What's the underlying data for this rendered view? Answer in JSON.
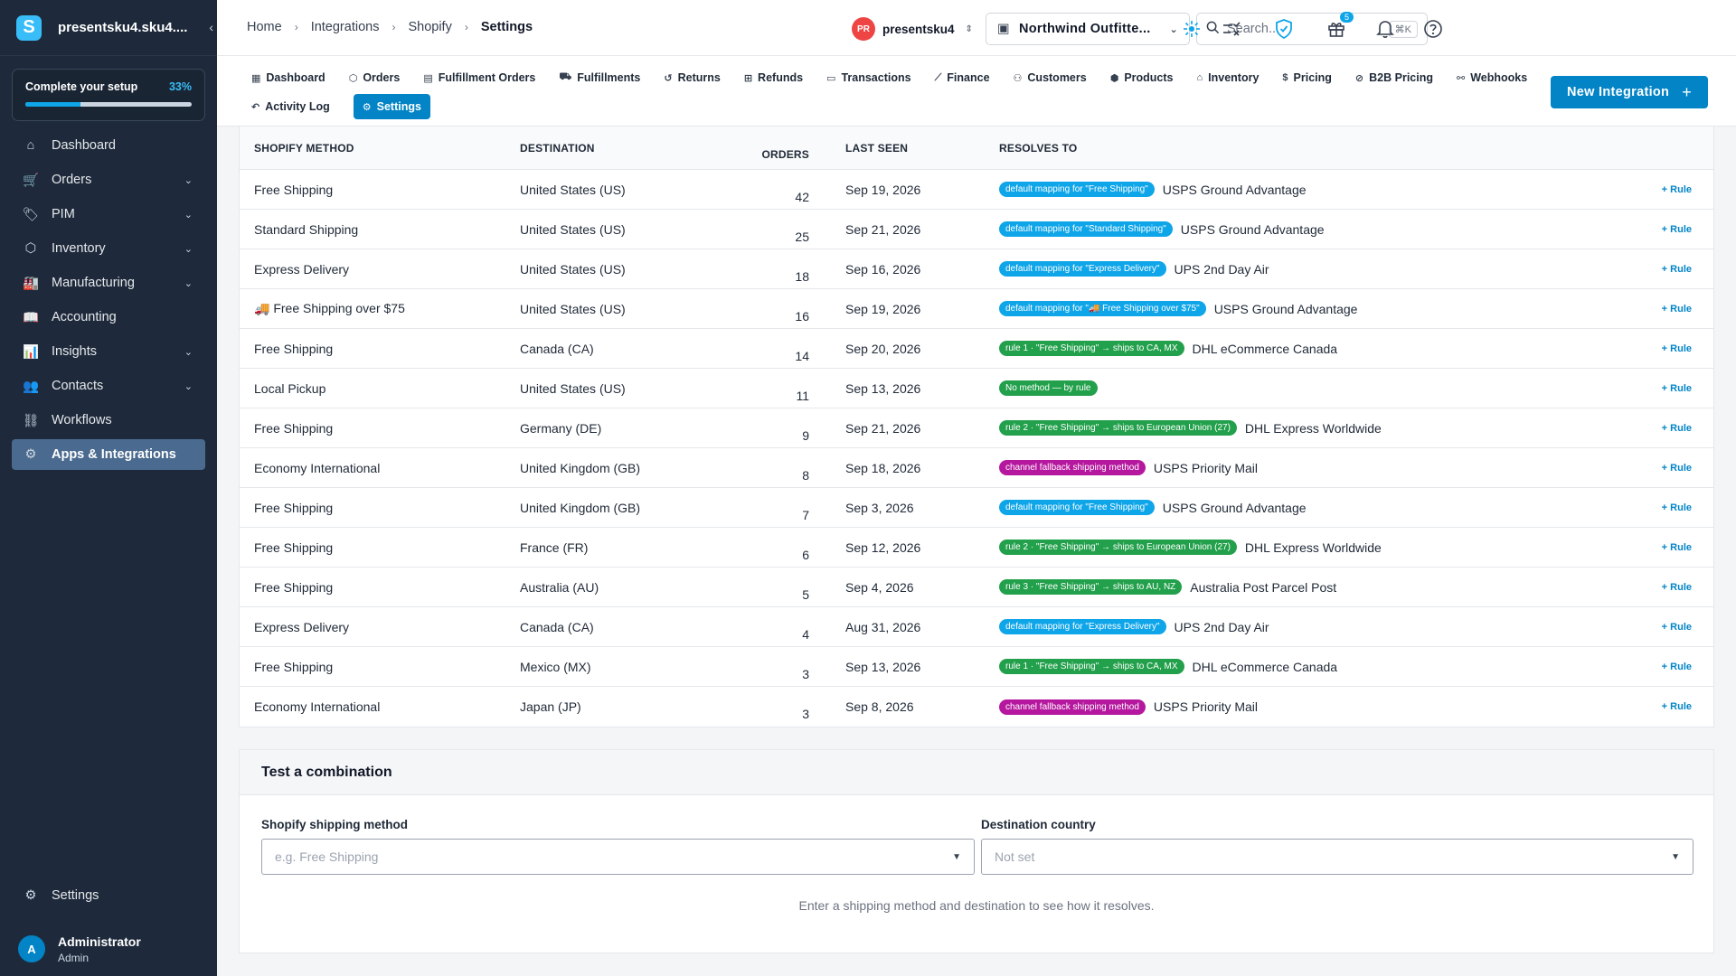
{
  "sidebar": {
    "brand_letter": "S",
    "brand_name": "presentsku4.sku4....",
    "collapse_glyph": "‹",
    "setup": {
      "label": "Complete your setup",
      "percent_label": "33%",
      "progress": 0.33
    },
    "items": [
      {
        "label": "Dashboard",
        "icon": "home-icon",
        "glyph": "⌂",
        "chevron": false,
        "active": false
      },
      {
        "label": "Orders",
        "icon": "cart-icon",
        "glyph": "🛒",
        "chevron": true,
        "active": false
      },
      {
        "label": "PIM",
        "icon": "tag-icon",
        "glyph": "🏷",
        "chevron": true,
        "active": false
      },
      {
        "label": "Inventory",
        "icon": "box-icon",
        "glyph": "⬡",
        "chevron": true,
        "active": false
      },
      {
        "label": "Manufacturing",
        "icon": "factory-icon",
        "glyph": "🏭",
        "chevron": true,
        "active": false
      },
      {
        "label": "Accounting",
        "icon": "book-icon",
        "glyph": "📖",
        "chevron": false,
        "active": false
      },
      {
        "label": "Insights",
        "icon": "chart-icon",
        "glyph": "📊",
        "chevron": true,
        "active": false
      },
      {
        "label": "Contacts",
        "icon": "people-icon",
        "glyph": "👥",
        "chevron": true,
        "active": false
      },
      {
        "label": "Workflows",
        "icon": "workflow-icon",
        "glyph": "⛓",
        "chevron": false,
        "active": false
      },
      {
        "label": "Apps & Integrations",
        "icon": "gear-icon",
        "glyph": "⚙",
        "chevron": false,
        "active": true
      }
    ],
    "settings_label": "Settings",
    "user": {
      "initial": "A",
      "name": "Administrator",
      "role": "Admin"
    }
  },
  "header": {
    "breadcrumbs": [
      "Home",
      "Integrations",
      "Shopify",
      "Settings"
    ],
    "user_initials": "PR",
    "user_name": "presentsku4",
    "store_name": "Northwind Outfitte...",
    "search_placeholder": "Search...",
    "search_shortcut": "⌘K",
    "gift_badge": "5"
  },
  "tabs": {
    "row1": [
      {
        "label": "Dashboard",
        "icon": "grid-icon",
        "glyph": "▦"
      },
      {
        "label": "Orders",
        "icon": "box-icon",
        "glyph": "⬡"
      },
      {
        "label": "Fulfillment Orders",
        "icon": "clipboard-icon",
        "glyph": "▤"
      },
      {
        "label": "Fulfillments",
        "icon": "truck-icon",
        "glyph": "⛟"
      },
      {
        "label": "Returns",
        "icon": "return-icon",
        "glyph": "↺"
      },
      {
        "label": "Refunds",
        "icon": "refund-icon",
        "glyph": "⊞"
      },
      {
        "label": "Transactions",
        "icon": "card-icon",
        "glyph": "▭"
      },
      {
        "label": "Finance",
        "icon": "finance-icon",
        "glyph": "⟋"
      },
      {
        "label": "Customers",
        "icon": "people-icon",
        "glyph": "⚇"
      },
      {
        "label": "Products",
        "icon": "product-icon",
        "glyph": "⬢"
      },
      {
        "label": "Inventory",
        "icon": "warehouse-icon",
        "glyph": "⌂"
      },
      {
        "label": "Pricing",
        "icon": "dollar-icon",
        "glyph": "$"
      },
      {
        "label": "B2B Pricing",
        "icon": "tag-icon",
        "glyph": "⊘"
      },
      {
        "label": "Webhooks",
        "icon": "webhook-icon",
        "glyph": "⚯"
      }
    ],
    "row2": [
      {
        "label": "Activity Log",
        "icon": "history-icon",
        "glyph": "↶",
        "active": false
      },
      {
        "label": "Settings",
        "icon": "gear-icon",
        "glyph": "⚙",
        "active": true
      }
    ],
    "new_integration_label": "New Integration"
  },
  "table": {
    "headers": [
      "SHOPIFY METHOD",
      "DESTINATION",
      "ORDERS",
      "LAST SEEN",
      "RESOLVES TO"
    ],
    "rule_label": "Rule",
    "rows": [
      {
        "method": "Free Shipping",
        "destination": "United States (US)",
        "orders": "42",
        "last_seen": "Sep 19, 2026",
        "pill": "default mapping for \"Free Shipping\"",
        "pill_color": "blue",
        "resolves": "USPS Ground Advantage"
      },
      {
        "method": "Standard Shipping",
        "destination": "United States (US)",
        "orders": "25",
        "last_seen": "Sep 21, 2026",
        "pill": "default mapping for \"Standard Shipping\"",
        "pill_color": "blue",
        "resolves": "USPS Ground Advantage"
      },
      {
        "method": "Express Delivery",
        "destination": "United States (US)",
        "orders": "18",
        "last_seen": "Sep 16, 2026",
        "pill": "default mapping for \"Express Delivery\"",
        "pill_color": "blue",
        "resolves": "UPS 2nd Day Air"
      },
      {
        "method": "🚚 Free Shipping over $75",
        "destination": "United States (US)",
        "orders": "16",
        "last_seen": "Sep 19, 2026",
        "pill": "default mapping for \"🚚 Free Shipping over $75\"",
        "pill_color": "blue",
        "resolves": "USPS Ground Advantage"
      },
      {
        "method": "Free Shipping",
        "destination": "Canada (CA)",
        "orders": "14",
        "last_seen": "Sep 20, 2026",
        "pill": "rule 1 · \"Free Shipping\" → ships to CA, MX",
        "pill_color": "green",
        "resolves": "DHL eCommerce Canada"
      },
      {
        "method": "Local Pickup",
        "destination": "United States (US)",
        "orders": "11",
        "last_seen": "Sep 13, 2026",
        "pill": "No method — by rule",
        "pill_color": "green",
        "resolves": ""
      },
      {
        "method": "Free Shipping",
        "destination": "Germany (DE)",
        "orders": "9",
        "last_seen": "Sep 21, 2026",
        "pill": "rule 2 · \"Free Shipping\" → ships to European Union (27)",
        "pill_color": "green",
        "resolves": "DHL Express Worldwide"
      },
      {
        "method": "Economy International",
        "destination": "United Kingdom (GB)",
        "orders": "8",
        "last_seen": "Sep 18, 2026",
        "pill": "channel fallback shipping method",
        "pill_color": "purple",
        "resolves": "USPS Priority Mail"
      },
      {
        "method": "Free Shipping",
        "destination": "United Kingdom (GB)",
        "orders": "7",
        "last_seen": "Sep 3, 2026",
        "pill": "default mapping for \"Free Shipping\"",
        "pill_color": "blue",
        "resolves": "USPS Ground Advantage"
      },
      {
        "method": "Free Shipping",
        "destination": "France (FR)",
        "orders": "6",
        "last_seen": "Sep 12, 2026",
        "pill": "rule 2 · \"Free Shipping\" → ships to European Union (27)",
        "pill_color": "green",
        "resolves": "DHL Express Worldwide"
      },
      {
        "method": "Free Shipping",
        "destination": "Australia (AU)",
        "orders": "5",
        "last_seen": "Sep 4, 2026",
        "pill": "rule 3 · \"Free Shipping\" → ships to AU, NZ",
        "pill_color": "green",
        "resolves": "Australia Post Parcel Post"
      },
      {
        "method": "Express Delivery",
        "destination": "Canada (CA)",
        "orders": "4",
        "last_seen": "Aug 31, 2026",
        "pill": "default mapping for \"Express Delivery\"",
        "pill_color": "blue",
        "resolves": "UPS 2nd Day Air"
      },
      {
        "method": "Free Shipping",
        "destination": "Mexico (MX)",
        "orders": "3",
        "last_seen": "Sep 13, 2026",
        "pill": "rule 1 · \"Free Shipping\" → ships to CA, MX",
        "pill_color": "green",
        "resolves": "DHL eCommerce Canada"
      },
      {
        "method": "Economy International",
        "destination": "Japan (JP)",
        "orders": "3",
        "last_seen": "Sep 8, 2026",
        "pill": "channel fallback shipping method",
        "pill_color": "purple",
        "resolves": "USPS Priority Mail"
      }
    ]
  },
  "test": {
    "title": "Test a combination",
    "method_label": "Shopify shipping method",
    "method_placeholder": "e.g. Free Shipping",
    "country_label": "Destination country",
    "country_value": "Not set",
    "hint": "Enter a shipping method and destination to see how it resolves."
  }
}
